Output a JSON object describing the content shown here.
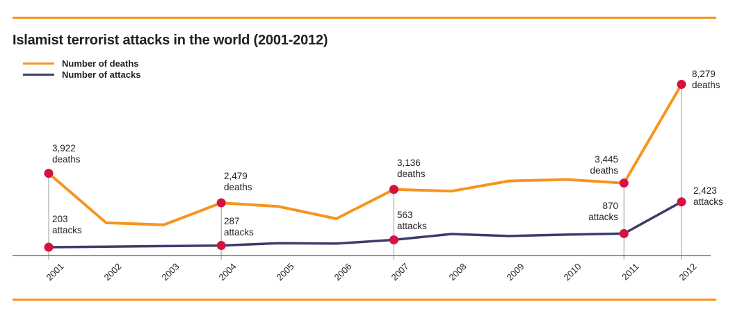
{
  "title": "Islamist terrorist attacks in the world (2001-2012)",
  "legend": {
    "deaths_label": "Number of deaths",
    "attacks_label": "Number of attacks"
  },
  "colors": {
    "orange": "#F7941E",
    "navy": "#3A3D6C",
    "dot_red": "#D5123F",
    "text_dark": "#231F20",
    "axis_gray": "#58595B",
    "annotation_line_gray": "#A7A9AC"
  },
  "chart_data": {
    "type": "line",
    "title": "Islamist terrorist attacks in the world (2001-2012)",
    "categories": [
      "2001",
      "2002",
      "2003",
      "2004",
      "2005",
      "2006",
      "2007",
      "2008",
      "2009",
      "2010",
      "2011",
      "2012"
    ],
    "series": [
      {
        "name": "Number of deaths",
        "color": "#F7941E",
        "values": [
          3922,
          1500,
          1400,
          2479,
          2300,
          1700,
          3136,
          3050,
          3550,
          3620,
          3445,
          8279
        ]
      },
      {
        "name": "Number of attacks",
        "color": "#3A3D6C",
        "values": [
          203,
          230,
          260,
          287,
          400,
          380,
          563,
          850,
          750,
          820,
          870,
          2423
        ]
      }
    ],
    "labeled_points": {
      "2001": {
        "deaths": 3922,
        "attacks": 203
      },
      "2004": {
        "deaths": 2479,
        "attacks": 287
      },
      "2007": {
        "deaths": 3136,
        "attacks": 563
      },
      "2011": {
        "deaths": 3445,
        "attacks": 870
      },
      "2012": {
        "deaths": 8279,
        "attacks": 2423
      }
    },
    "annotated_years": [
      "2001",
      "2004",
      "2007",
      "2011",
      "2012"
    ],
    "annotations": [
      {
        "year": "2001",
        "deaths_value": "3,922",
        "deaths_unit": "deaths",
        "attacks_value": "203",
        "attacks_unit": "attacks"
      },
      {
        "year": "2004",
        "deaths_value": "2,479",
        "deaths_unit": "deaths",
        "attacks_value": "287",
        "attacks_unit": "attacks"
      },
      {
        "year": "2007",
        "deaths_value": "3,136",
        "deaths_unit": "deaths",
        "attacks_value": "563",
        "attacks_unit": "attacks"
      },
      {
        "year": "2011",
        "deaths_value": "3,445",
        "deaths_unit": "deaths",
        "attacks_value": "870",
        "attacks_unit": "attacks"
      },
      {
        "year": "2012",
        "deaths_value": "8,279",
        "deaths_unit": "deaths",
        "attacks_value": "2,423",
        "attacks_unit": "attacks"
      }
    ],
    "xlabel": "",
    "ylabel": "",
    "grid": false,
    "legend_position": "top-left",
    "x_tick_rotation": -45,
    "note": "unlabeled years estimated from line positions"
  }
}
